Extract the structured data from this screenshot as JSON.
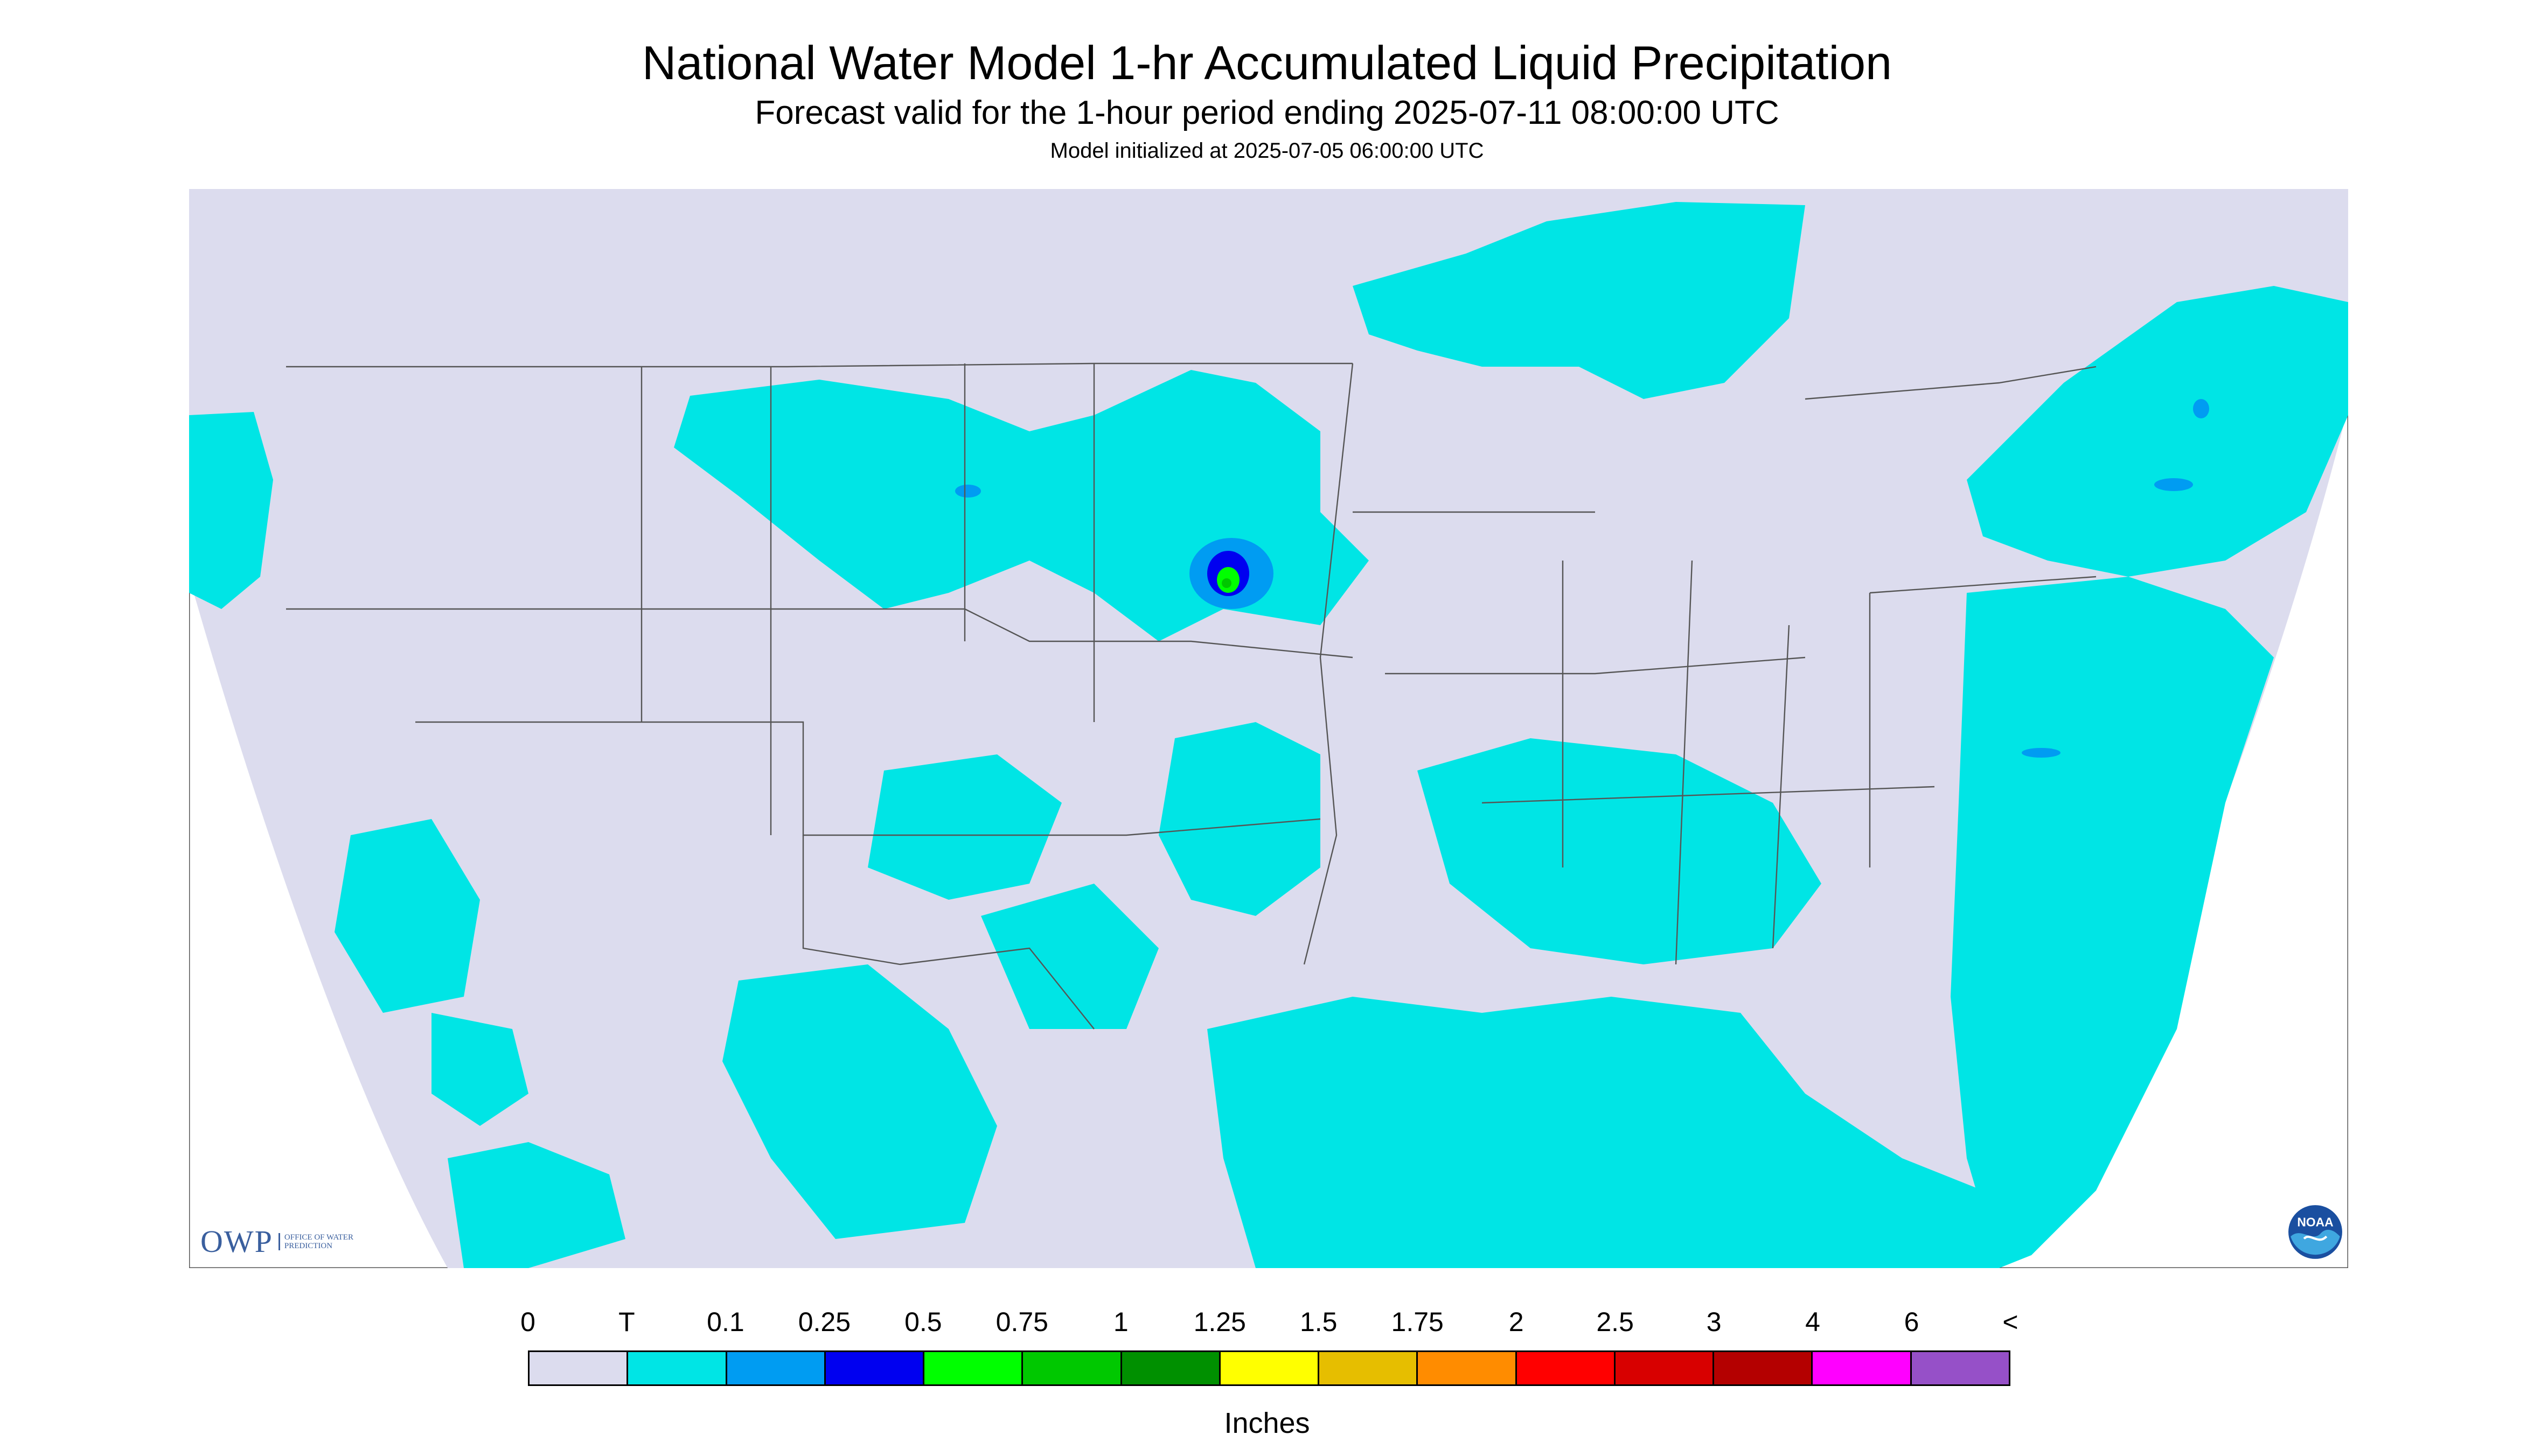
{
  "header": {
    "title": "National Water Model 1-hr Accumulated Liquid Precipitation",
    "subtitle": "Forecast valid for the 1-hour period ending 2025-07-11 08:00:00 UTC",
    "init": "Model initialized at 2025-07-05 06:00:00 UTC"
  },
  "map": {
    "background": "#dcdcee",
    "outside_color": "#ffffff",
    "border_color": "#555555",
    "precip_trace_color": "#00e5e5",
    "precip_010_color": "#009cf2",
    "precip_025_color": "#0000f0",
    "precip_050_color": "#00ff00",
    "precip_075_color": "#00c800"
  },
  "legend": {
    "labels": [
      "0",
      "T",
      "0.1",
      "0.25",
      "0.5",
      "0.75",
      "1",
      "1.25",
      "1.5",
      "1.75",
      "2",
      "2.5",
      "3",
      "4",
      "6",
      "<"
    ],
    "colors": [
      "#dcdcee",
      "#00e5e5",
      "#009cf2",
      "#0000f0",
      "#00ff00",
      "#00c800",
      "#009000",
      "#ffff00",
      "#e6be00",
      "#ff8c00",
      "#ff0000",
      "#d80000",
      "#b40000",
      "#ff00ff",
      "#9650c8"
    ],
    "units": "Inches"
  },
  "logos": {
    "owp": "OWP",
    "owp_sub": "OFFICE OF WATER PREDICTION",
    "noaa": "NOAA"
  }
}
